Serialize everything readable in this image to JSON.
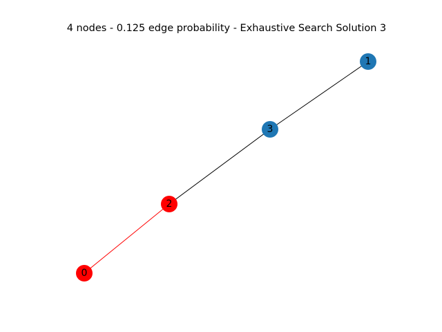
{
  "title": "4 nodes - 0.125 edge probability - Exhaustive Search Solution 3",
  "colors": {
    "selected": "#ff0000",
    "unselected": "#1f77b4",
    "edge_selected": "#ff0000",
    "edge_default": "#000000"
  },
  "nodes": [
    {
      "id": "0",
      "label": "0",
      "selected": true
    },
    {
      "id": "1",
      "label": "1",
      "selected": false
    },
    {
      "id": "2",
      "label": "2",
      "selected": true
    },
    {
      "id": "3",
      "label": "3",
      "selected": false
    }
  ],
  "edges": [
    {
      "source": "0",
      "target": "2",
      "selected": true
    },
    {
      "source": "2",
      "target": "3",
      "selected": false
    },
    {
      "source": "3",
      "target": "1",
      "selected": false
    }
  ]
}
